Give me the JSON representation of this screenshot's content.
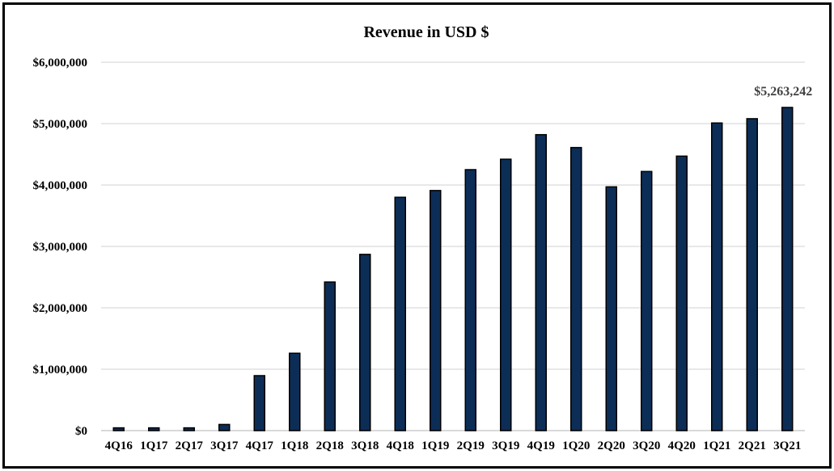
{
  "chart_data": {
    "type": "bar",
    "title": "Revenue in USD $",
    "xlabel": "",
    "ylabel": "",
    "categories": [
      "4Q16",
      "1Q17",
      "2Q17",
      "3Q17",
      "4Q17",
      "1Q18",
      "2Q18",
      "3Q18",
      "4Q18",
      "1Q19",
      "2Q19",
      "3Q19",
      "4Q19",
      "1Q20",
      "2Q20",
      "3Q20",
      "4Q20",
      "1Q21",
      "2Q21",
      "3Q21"
    ],
    "values": [
      45000,
      45000,
      45000,
      100000,
      895000,
      1260000,
      2420000,
      2870000,
      3800000,
      3910000,
      4250000,
      4420000,
      4820000,
      4610000,
      3970000,
      4220000,
      4470000,
      5010000,
      5080000,
      5263242
    ],
    "ylim": [
      0,
      6000000
    ],
    "yticks": [
      0,
      1000000,
      2000000,
      3000000,
      4000000,
      5000000,
      6000000
    ],
    "ytick_labels": [
      "$0",
      "$1,000,000",
      "$2,000,000",
      "$3,000,000",
      "$4,000,000",
      "$5,000,000",
      "$6,000,000"
    ],
    "data_labels": [
      {
        "category": "3Q21",
        "text": "$5,263,242"
      }
    ],
    "grid": true,
    "legend": "none",
    "bar_color": "#0c2d56",
    "bar_edge_color": "#000000"
  }
}
